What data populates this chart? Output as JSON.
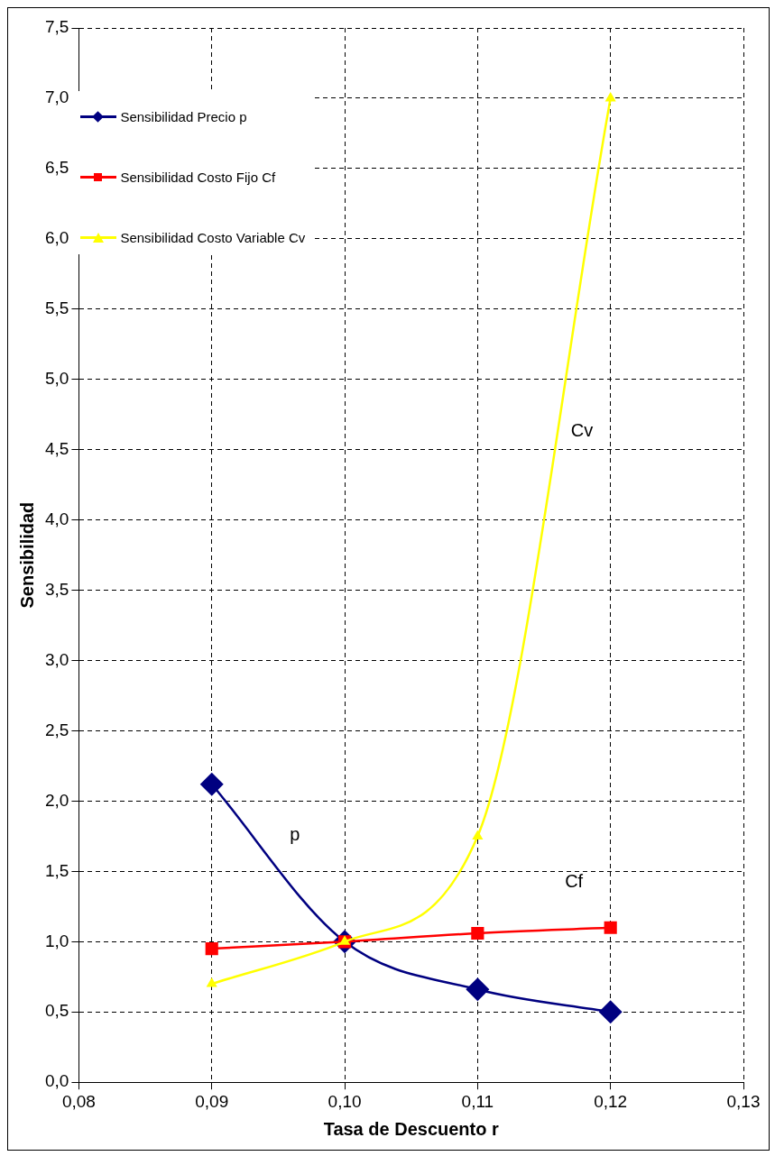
{
  "chart_data": {
    "type": "line",
    "xlabel": "Tasa de Descuento r",
    "ylabel": "Sensibilidad",
    "x": [
      0.09,
      0.1,
      0.11,
      0.12
    ],
    "series": [
      {
        "name": "Sensibilidad Precio p",
        "color": "#000080",
        "marker": "diamond",
        "values": [
          2.12,
          1.0,
          0.66,
          0.5
        ]
      },
      {
        "name": "Sensibilidad Costo Fijo Cf",
        "color": "#ff0000",
        "marker": "square",
        "values": [
          0.95,
          1.0,
          1.06,
          1.1
        ]
      },
      {
        "name": "Sensibilidad Costo Variable Cv",
        "color": "#ffff00",
        "marker": "triangle",
        "values": [
          0.7,
          1.0,
          1.75,
          7.0
        ]
      }
    ],
    "xlim": [
      0.08,
      0.13
    ],
    "xticks": [
      {
        "value": 0.08,
        "label": "0,08"
      },
      {
        "value": 0.09,
        "label": "0,09"
      },
      {
        "value": 0.1,
        "label": "0,10"
      },
      {
        "value": 0.11,
        "label": "0,11"
      },
      {
        "value": 0.12,
        "label": "0,12"
      },
      {
        "value": 0.13,
        "label": "0,13"
      }
    ],
    "ylim": [
      0,
      7.5
    ],
    "yticks": [
      {
        "value": 0,
        "label": "0,0"
      },
      {
        "value": 0.5,
        "label": "0,5"
      },
      {
        "value": 1,
        "label": "1,0"
      },
      {
        "value": 1.5,
        "label": "1,5"
      },
      {
        "value": 2,
        "label": "2,0"
      },
      {
        "value": 2.5,
        "label": "2,5"
      },
      {
        "value": 3,
        "label": "3,0"
      },
      {
        "value": 3.5,
        "label": "3,5"
      },
      {
        "value": 4,
        "label": "4,0"
      },
      {
        "value": 4.5,
        "label": "4,5"
      },
      {
        "value": 5,
        "label": "5,0"
      },
      {
        "value": 5.5,
        "label": "5,5"
      },
      {
        "value": 6,
        "label": "6,0"
      },
      {
        "value": 6.5,
        "label": "6,5"
      },
      {
        "value": 7,
        "label": "7,0"
      },
      {
        "value": 7.5,
        "label": "7,5"
      }
    ],
    "grid": true,
    "line_style": "solid",
    "legend": "top left",
    "annotations": [
      "p",
      "Cf",
      "Cv"
    ]
  }
}
